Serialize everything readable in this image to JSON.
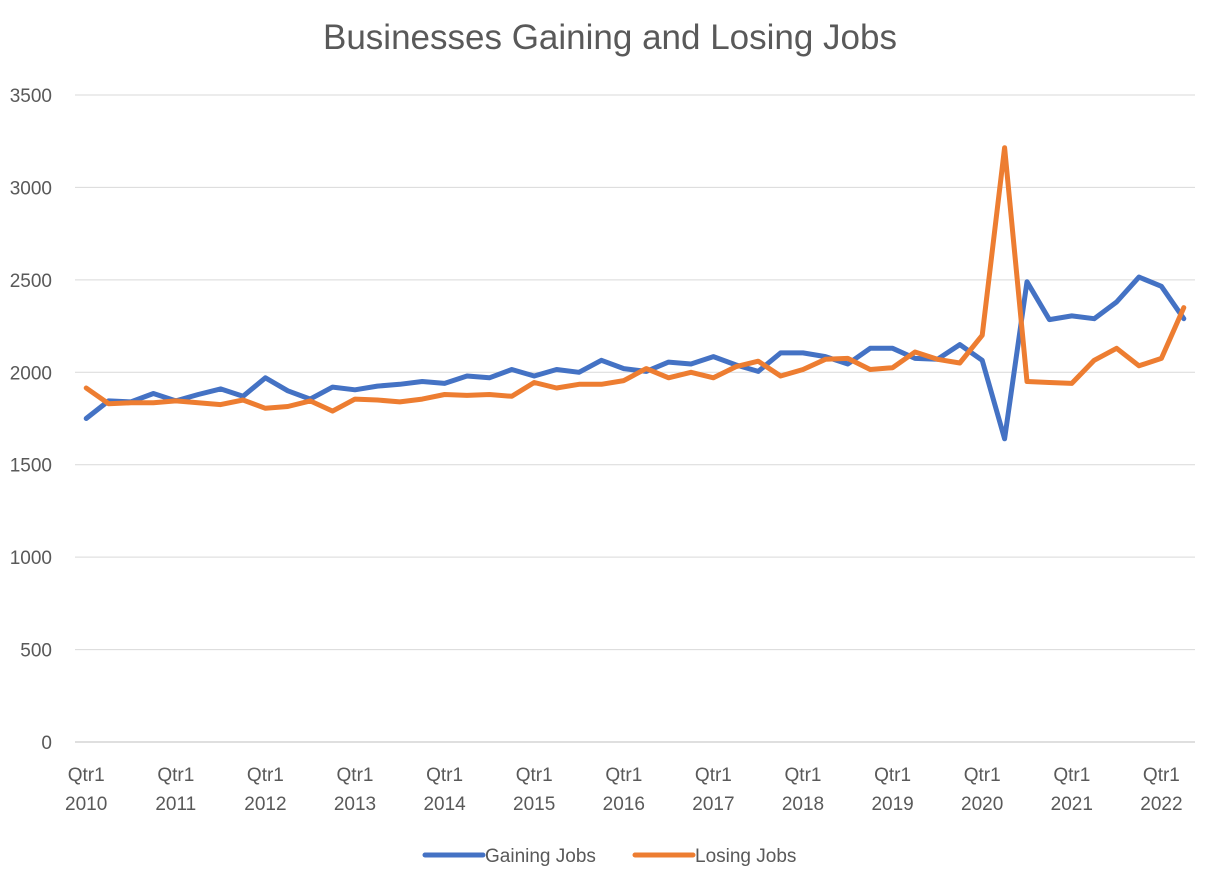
{
  "chart_data": {
    "type": "line",
    "title": "Businesses Gaining and Losing Jobs",
    "xlabel": "",
    "ylabel": "",
    "ylim": [
      0,
      3500
    ],
    "yticks": [
      "0",
      "500",
      "1000",
      "1500",
      "2000",
      "2500",
      "3000",
      "3500"
    ],
    "grid": true,
    "legend_position": "bottom",
    "x_tick_labels": [
      {
        "quarter": "Qtr1",
        "year": "2010"
      },
      {
        "quarter": "Qtr1",
        "year": "2011"
      },
      {
        "quarter": "Qtr1",
        "year": "2012"
      },
      {
        "quarter": "Qtr1",
        "year": "2013"
      },
      {
        "quarter": "Qtr1",
        "year": "2014"
      },
      {
        "quarter": "Qtr1",
        "year": "2015"
      },
      {
        "quarter": "Qtr1",
        "year": "2016"
      },
      {
        "quarter": "Qtr1",
        "year": "2017"
      },
      {
        "quarter": "Qtr1",
        "year": "2018"
      },
      {
        "quarter": "Qtr1",
        "year": "2019"
      },
      {
        "quarter": "Qtr1",
        "year": "2020"
      },
      {
        "quarter": "Qtr1",
        "year": "2021"
      },
      {
        "quarter": "Qtr1",
        "year": "2022"
      }
    ],
    "series": [
      {
        "name": "Gaining Jobs",
        "color": "#4472C4",
        "values": [
          1750,
          1845,
          1840,
          1885,
          1845,
          1880,
          1910,
          1870,
          1970,
          1900,
          1855,
          1920,
          1905,
          1925,
          1935,
          1950,
          1940,
          1980,
          1970,
          2015,
          1980,
          2015,
          2000,
          2065,
          2020,
          2005,
          2055,
          2045,
          2085,
          2040,
          2005,
          2105,
          2105,
          2085,
          2045,
          2130,
          2130,
          2075,
          2070,
          2150,
          2065,
          1640,
          2490,
          2285,
          2305,
          2290,
          2380,
          2515,
          2465,
          2290
        ]
      },
      {
        "name": "Losing Jobs",
        "color": "#ED7D31",
        "values": [
          1915,
          1830,
          1835,
          1835,
          1845,
          1835,
          1825,
          1850,
          1805,
          1815,
          1845,
          1790,
          1855,
          1850,
          1840,
          1855,
          1880,
          1875,
          1880,
          1870,
          1945,
          1915,
          1935,
          1935,
          1955,
          2020,
          1970,
          2000,
          1970,
          2030,
          2060,
          1980,
          2015,
          2070,
          2075,
          2015,
          2025,
          2110,
          2070,
          2050,
          2200,
          3215,
          1950,
          1945,
          1940,
          2065,
          2130,
          2035,
          2075,
          2350
        ]
      }
    ]
  }
}
